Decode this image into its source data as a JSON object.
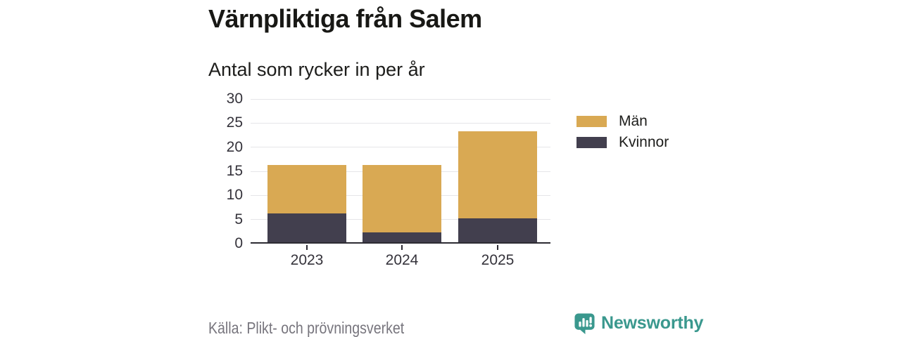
{
  "header": {
    "title": "Värnpliktiga från Salem",
    "subtitle": "Antal som rycker in per år"
  },
  "chart_data": {
    "type": "bar",
    "stacked": true,
    "title": "Värnpliktiga från Salem",
    "subtitle": "Antal som rycker in per år",
    "categories": [
      "2023",
      "2024",
      "2025"
    ],
    "series": [
      {
        "name": "Kvinnor",
        "color": "#423f4e",
        "values": [
          6,
          2,
          5
        ]
      },
      {
        "name": "Män",
        "color": "#d9a953",
        "values": [
          10,
          14,
          18
        ]
      }
    ],
    "stack_order_bottom_to_top": [
      "Kvinnor",
      "Män"
    ],
    "totals": [
      16,
      16,
      23
    ],
    "xlabel": "",
    "ylabel": "",
    "ylim": [
      0,
      30
    ],
    "yticks": [
      0,
      5,
      10,
      15,
      20,
      25,
      30
    ],
    "grid": true,
    "legend_position": "right"
  },
  "legend": {
    "items": [
      {
        "label": "Män",
        "color": "#d9a953"
      },
      {
        "label": "Kvinnor",
        "color": "#423f4e"
      }
    ]
  },
  "footer": {
    "source": "Källa: Plikt- och prövningsverket",
    "brand": "Newsworthy"
  },
  "colors": {
    "axis_line": "#2d2b33",
    "grid_line": "#e5e5e8",
    "tick_text": "#35333b",
    "title_text": "#181815",
    "source_text": "#77757d",
    "brand_teal": "#3a988e",
    "background": "#ffffff"
  }
}
